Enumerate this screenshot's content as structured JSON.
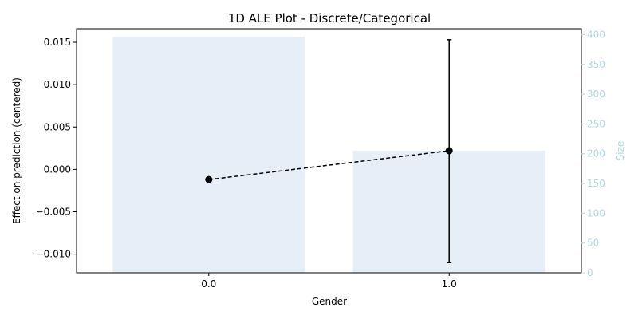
{
  "chart_data": {
    "type": "bar+line",
    "title": "1D ALE Plot - Discrete/Categorical",
    "xlabel": "Gender",
    "ylabel": "Effect on prediction (centered)",
    "ylabel_right": "Size",
    "categories": [
      "0.0",
      "1.0"
    ],
    "ylim": [
      -0.0122,
      0.0166
    ],
    "ylim_right": [
      0,
      410
    ],
    "yticks": [
      -0.01,
      -0.005,
      0.0,
      0.005,
      0.01,
      0.015
    ],
    "ytick_labels": [
      "−0.010",
      "−0.005",
      "0.000",
      "0.005",
      "0.010",
      "0.015"
    ],
    "yticks_right": [
      0,
      50,
      100,
      150,
      200,
      250,
      300,
      350,
      400
    ],
    "ytick_labels_right": [
      "0",
      "50",
      "100",
      "150",
      "200",
      "250",
      "300",
      "350",
      "400"
    ],
    "size_bars": [
      396,
      205
    ],
    "ale_values": [
      -0.0012,
      0.0022
    ],
    "error_bars": [
      null,
      [
        -0.011,
        0.0153
      ]
    ],
    "grid": false,
    "colors": {
      "bars": "#e6eff8",
      "line": "#000000",
      "right_axis": "#add8e6"
    }
  }
}
